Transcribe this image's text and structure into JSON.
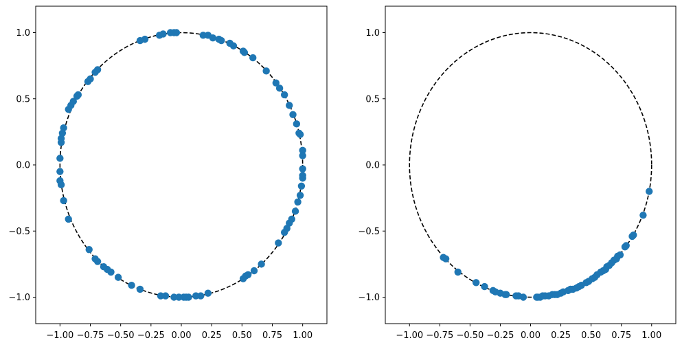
{
  "chart_data": [
    {
      "type": "scatter",
      "xlim": [
        -1.2,
        1.2
      ],
      "ylim": [
        -1.2,
        1.2
      ],
      "xticks": [
        -1.0,
        -0.75,
        -0.5,
        -0.25,
        0.0,
        0.25,
        0.5,
        0.75,
        1.0
      ],
      "xtick_labels": [
        "−1.00",
        "−0.75",
        "−0.50",
        "−0.25",
        "0.00",
        "0.25",
        "0.50",
        "0.75",
        "1.00"
      ],
      "yticks": [
        1.0,
        0.5,
        0.0,
        -0.5,
        -1.0
      ],
      "ytick_labels": [
        "1.0",
        "0.5",
        "0.0",
        "−0.5",
        "−1.0"
      ],
      "grid": false,
      "reference_circle": {
        "radius": 1,
        "style": "dashed",
        "color": "#000000"
      },
      "marker_color": "#1f77b4",
      "points": [
        [
          -0.09,
          1.0
        ],
        [
          -0.06,
          1.0
        ],
        [
          -0.04,
          1.0
        ],
        [
          -0.18,
          0.98
        ],
        [
          -0.15,
          0.99
        ],
        [
          -0.3,
          0.95
        ],
        [
          -0.34,
          0.94
        ],
        [
          0.18,
          0.98
        ],
        [
          0.22,
          0.98
        ],
        [
          0.26,
          0.96
        ],
        [
          0.31,
          0.95
        ],
        [
          0.33,
          0.94
        ],
        [
          0.4,
          0.92
        ],
        [
          0.43,
          0.9
        ],
        [
          0.51,
          0.86
        ],
        [
          0.52,
          0.85
        ],
        [
          0.59,
          0.81
        ],
        [
          0.7,
          0.71
        ],
        [
          0.78,
          0.62
        ],
        [
          0.81,
          0.58
        ],
        [
          0.85,
          0.53
        ],
        [
          0.89,
          0.45
        ],
        [
          0.92,
          0.38
        ],
        [
          0.95,
          0.31
        ],
        [
          0.97,
          0.24
        ],
        [
          0.98,
          0.23
        ],
        [
          1.0,
          0.11
        ],
        [
          1.0,
          0.07
        ],
        [
          1.0,
          -0.03
        ],
        [
          1.0,
          -0.08
        ],
        [
          1.0,
          -0.1
        ],
        [
          0.99,
          -0.16
        ],
        [
          0.98,
          -0.23
        ],
        [
          0.96,
          -0.28
        ],
        [
          0.94,
          -0.35
        ],
        [
          0.91,
          -0.41
        ],
        [
          0.89,
          -0.44
        ],
        [
          0.87,
          -0.48
        ],
        [
          0.85,
          -0.51
        ],
        [
          0.8,
          -0.59
        ],
        [
          0.66,
          -0.75
        ],
        [
          0.6,
          -0.8
        ],
        [
          0.55,
          -0.83
        ],
        [
          0.53,
          -0.84
        ],
        [
          0.51,
          -0.86
        ],
        [
          0.22,
          -0.97
        ],
        [
          0.16,
          -0.99
        ],
        [
          0.12,
          -0.99
        ],
        [
          0.06,
          -1.0
        ],
        [
          0.04,
          -1.0
        ],
        [
          0.02,
          -1.0
        ],
        [
          -0.02,
          -1.0
        ],
        [
          -0.06,
          -1.0
        ],
        [
          -0.13,
          -0.99
        ],
        [
          -0.17,
          -0.99
        ],
        [
          -0.34,
          -0.94
        ],
        [
          -0.41,
          -0.91
        ],
        [
          -0.52,
          -0.85
        ],
        [
          -0.58,
          -0.81
        ],
        [
          -0.61,
          -0.79
        ],
        [
          -0.64,
          -0.77
        ],
        [
          -0.69,
          -0.73
        ],
        [
          -0.71,
          -0.71
        ],
        [
          -0.76,
          -0.64
        ],
        [
          -0.93,
          -0.41
        ],
        [
          -0.97,
          -0.27
        ],
        [
          -0.99,
          -0.15
        ],
        [
          -1.0,
          -0.12
        ],
        [
          -1.0,
          -0.05
        ],
        [
          -1.0,
          0.05
        ],
        [
          -0.99,
          0.17
        ],
        [
          -0.99,
          0.2
        ],
        [
          -0.98,
          0.24
        ],
        [
          -0.97,
          0.28
        ],
        [
          -0.93,
          0.42
        ],
        [
          -0.91,
          0.45
        ],
        [
          -0.89,
          0.48
        ],
        [
          -0.86,
          0.52
        ],
        [
          -0.85,
          0.53
        ],
        [
          -0.77,
          0.63
        ],
        [
          -0.75,
          0.65
        ],
        [
          -0.71,
          0.7
        ],
        [
          -0.69,
          0.72
        ]
      ]
    },
    {
      "type": "scatter",
      "xlim": [
        -1.2,
        1.2
      ],
      "ylim": [
        -1.2,
        1.2
      ],
      "xticks": [
        -1.0,
        -0.75,
        -0.5,
        -0.25,
        0.0,
        0.25,
        0.5,
        0.75,
        1.0
      ],
      "xtick_labels": [
        "−1.00",
        "−0.75",
        "−0.50",
        "−0.25",
        "0.00",
        "0.25",
        "0.50",
        "0.75",
        "1.00"
      ],
      "yticks": [
        1.0,
        0.5,
        0.0,
        -0.5,
        -1.0
      ],
      "ytick_labels": [
        "1.0",
        "0.5",
        "0.0",
        "−0.5",
        "−1.0"
      ],
      "grid": false,
      "reference_circle": {
        "radius": 1,
        "style": "dashed",
        "color": "#000000"
      },
      "marker_color": "#1f77b4",
      "points": [
        [
          0.98,
          -0.2
        ],
        [
          0.93,
          -0.38
        ],
        [
          0.85,
          -0.53
        ],
        [
          0.84,
          -0.54
        ],
        [
          0.79,
          -0.61
        ],
        [
          0.78,
          -0.62
        ],
        [
          0.74,
          -0.68
        ],
        [
          0.72,
          -0.69
        ],
        [
          0.71,
          -0.71
        ],
        [
          0.69,
          -0.72
        ],
        [
          0.67,
          -0.74
        ],
        [
          0.65,
          -0.76
        ],
        [
          0.63,
          -0.77
        ],
        [
          0.62,
          -0.79
        ],
        [
          0.6,
          -0.8
        ],
        [
          0.58,
          -0.81
        ],
        [
          0.55,
          -0.83
        ],
        [
          0.53,
          -0.85
        ],
        [
          0.51,
          -0.86
        ],
        [
          0.48,
          -0.88
        ],
        [
          0.46,
          -0.89
        ],
        [
          0.42,
          -0.91
        ],
        [
          0.4,
          -0.92
        ],
        [
          0.38,
          -0.93
        ],
        [
          0.35,
          -0.94
        ],
        [
          0.33,
          -0.94
        ],
        [
          0.31,
          -0.95
        ],
        [
          0.27,
          -0.96
        ],
        [
          0.25,
          -0.97
        ],
        [
          0.22,
          -0.98
        ],
        [
          0.2,
          -0.98
        ],
        [
          0.18,
          -0.98
        ],
        [
          0.15,
          -0.99
        ],
        [
          0.12,
          -0.99
        ],
        [
          0.1,
          -0.99
        ],
        [
          0.08,
          -1.0
        ],
        [
          0.06,
          -1.0
        ],
        [
          0.05,
          -1.0
        ],
        [
          -0.06,
          -1.0
        ],
        [
          -0.1,
          -0.99
        ],
        [
          -0.12,
          -0.99
        ],
        [
          -0.2,
          -0.98
        ],
        [
          -0.21,
          -0.98
        ],
        [
          -0.25,
          -0.97
        ],
        [
          -0.29,
          -0.96
        ],
        [
          -0.31,
          -0.95
        ],
        [
          -0.38,
          -0.92
        ],
        [
          -0.45,
          -0.89
        ],
        [
          -0.6,
          -0.81
        ],
        [
          -0.7,
          -0.71
        ],
        [
          -0.72,
          -0.7
        ]
      ]
    }
  ]
}
